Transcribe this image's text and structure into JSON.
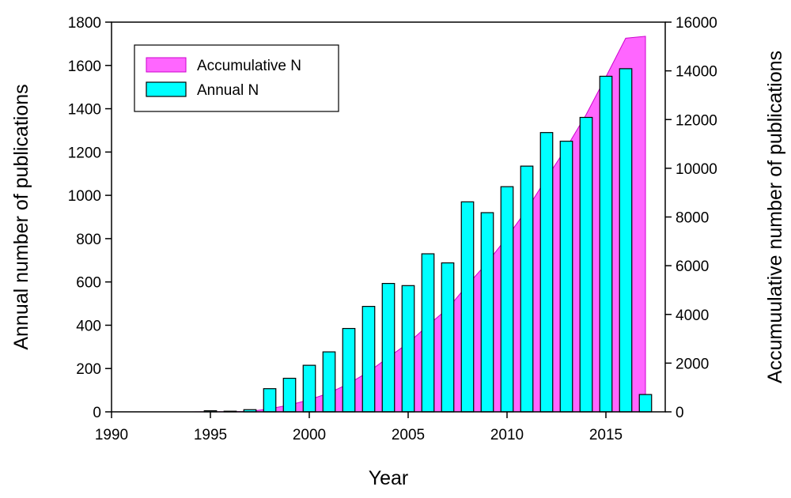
{
  "chart_data": {
    "type": "bar",
    "x_label": "Year",
    "y_label": "Annual number of publications",
    "y2_label": "Accumuulative number of publications",
    "x_range": [
      1990,
      2018
    ],
    "y_range": [
      0,
      1800
    ],
    "y2_range": [
      0,
      16000
    ],
    "x_ticks": [
      1990,
      1995,
      2000,
      2005,
      2010,
      2015
    ],
    "y_ticks": [
      0,
      200,
      400,
      600,
      800,
      1000,
      1200,
      1400,
      1600,
      1800
    ],
    "y2_ticks": [
      0,
      2000,
      4000,
      6000,
      8000,
      10000,
      12000,
      14000,
      16000
    ],
    "legend_position": "top-left",
    "grid": false,
    "series": [
      {
        "name": "Annual N",
        "type": "bar",
        "axis": "left",
        "color": "#00ffff",
        "x": [
          1994,
          1995,
          1996,
          1997,
          1998,
          1999,
          2000,
          2001,
          2002,
          2003,
          2004,
          2005,
          2006,
          2007,
          2008,
          2009,
          2010,
          2011,
          2012,
          2013,
          2014,
          2015,
          2016,
          2017
        ],
        "values": [
          0,
          5,
          3,
          10,
          107,
          155,
          215,
          277,
          385,
          487,
          593,
          583,
          730,
          688,
          970,
          920,
          1040,
          1135,
          1290,
          1250,
          1360,
          1550,
          1585,
          80
        ]
      },
      {
        "name": "Accumulative N",
        "type": "area",
        "axis": "right",
        "color": "#ff66ff",
        "x": [
          1994,
          1995,
          1996,
          1997,
          1998,
          1999,
          2000,
          2001,
          2002,
          2003,
          2004,
          2005,
          2006,
          2007,
          2008,
          2009,
          2010,
          2011,
          2012,
          2013,
          2014,
          2015,
          2016,
          2017
        ],
        "values": [
          0,
          5,
          8,
          18,
          125,
          280,
          495,
          772,
          1157,
          1644,
          2237,
          2820,
          3550,
          4238,
          5208,
          6128,
          7168,
          8303,
          9593,
          10843,
          12203,
          13753,
          15338,
          15418
        ]
      }
    ]
  }
}
